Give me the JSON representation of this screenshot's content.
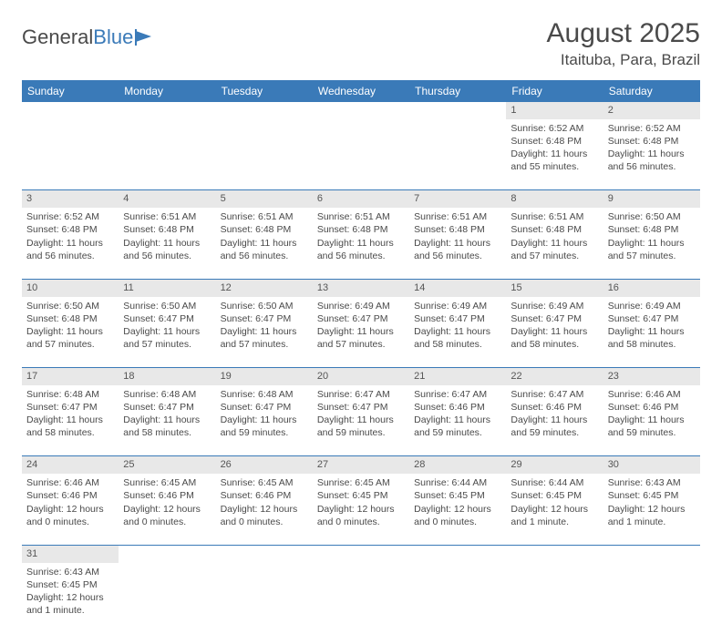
{
  "brand": {
    "part1": "General",
    "part2": "Blue"
  },
  "title": "August 2025",
  "location": "Itaituba, Para, Brazil",
  "colors": {
    "header_bg": "#3a7ab8",
    "header_text": "#ffffff",
    "daynum_bg": "#e8e8e8",
    "text": "#4a4a4a",
    "rule": "#3a7ab8"
  },
  "weekdays": [
    "Sunday",
    "Monday",
    "Tuesday",
    "Wednesday",
    "Thursday",
    "Friday",
    "Saturday"
  ],
  "weeks": [
    [
      null,
      null,
      null,
      null,
      null,
      {
        "n": "1",
        "sr": "Sunrise: 6:52 AM",
        "ss": "Sunset: 6:48 PM",
        "dl1": "Daylight: 11 hours",
        "dl2": "and 55 minutes."
      },
      {
        "n": "2",
        "sr": "Sunrise: 6:52 AM",
        "ss": "Sunset: 6:48 PM",
        "dl1": "Daylight: 11 hours",
        "dl2": "and 56 minutes."
      }
    ],
    [
      {
        "n": "3",
        "sr": "Sunrise: 6:52 AM",
        "ss": "Sunset: 6:48 PM",
        "dl1": "Daylight: 11 hours",
        "dl2": "and 56 minutes."
      },
      {
        "n": "4",
        "sr": "Sunrise: 6:51 AM",
        "ss": "Sunset: 6:48 PM",
        "dl1": "Daylight: 11 hours",
        "dl2": "and 56 minutes."
      },
      {
        "n": "5",
        "sr": "Sunrise: 6:51 AM",
        "ss": "Sunset: 6:48 PM",
        "dl1": "Daylight: 11 hours",
        "dl2": "and 56 minutes."
      },
      {
        "n": "6",
        "sr": "Sunrise: 6:51 AM",
        "ss": "Sunset: 6:48 PM",
        "dl1": "Daylight: 11 hours",
        "dl2": "and 56 minutes."
      },
      {
        "n": "7",
        "sr": "Sunrise: 6:51 AM",
        "ss": "Sunset: 6:48 PM",
        "dl1": "Daylight: 11 hours",
        "dl2": "and 56 minutes."
      },
      {
        "n": "8",
        "sr": "Sunrise: 6:51 AM",
        "ss": "Sunset: 6:48 PM",
        "dl1": "Daylight: 11 hours",
        "dl2": "and 57 minutes."
      },
      {
        "n": "9",
        "sr": "Sunrise: 6:50 AM",
        "ss": "Sunset: 6:48 PM",
        "dl1": "Daylight: 11 hours",
        "dl2": "and 57 minutes."
      }
    ],
    [
      {
        "n": "10",
        "sr": "Sunrise: 6:50 AM",
        "ss": "Sunset: 6:48 PM",
        "dl1": "Daylight: 11 hours",
        "dl2": "and 57 minutes."
      },
      {
        "n": "11",
        "sr": "Sunrise: 6:50 AM",
        "ss": "Sunset: 6:47 PM",
        "dl1": "Daylight: 11 hours",
        "dl2": "and 57 minutes."
      },
      {
        "n": "12",
        "sr": "Sunrise: 6:50 AM",
        "ss": "Sunset: 6:47 PM",
        "dl1": "Daylight: 11 hours",
        "dl2": "and 57 minutes."
      },
      {
        "n": "13",
        "sr": "Sunrise: 6:49 AM",
        "ss": "Sunset: 6:47 PM",
        "dl1": "Daylight: 11 hours",
        "dl2": "and 57 minutes."
      },
      {
        "n": "14",
        "sr": "Sunrise: 6:49 AM",
        "ss": "Sunset: 6:47 PM",
        "dl1": "Daylight: 11 hours",
        "dl2": "and 58 minutes."
      },
      {
        "n": "15",
        "sr": "Sunrise: 6:49 AM",
        "ss": "Sunset: 6:47 PM",
        "dl1": "Daylight: 11 hours",
        "dl2": "and 58 minutes."
      },
      {
        "n": "16",
        "sr": "Sunrise: 6:49 AM",
        "ss": "Sunset: 6:47 PM",
        "dl1": "Daylight: 11 hours",
        "dl2": "and 58 minutes."
      }
    ],
    [
      {
        "n": "17",
        "sr": "Sunrise: 6:48 AM",
        "ss": "Sunset: 6:47 PM",
        "dl1": "Daylight: 11 hours",
        "dl2": "and 58 minutes."
      },
      {
        "n": "18",
        "sr": "Sunrise: 6:48 AM",
        "ss": "Sunset: 6:47 PM",
        "dl1": "Daylight: 11 hours",
        "dl2": "and 58 minutes."
      },
      {
        "n": "19",
        "sr": "Sunrise: 6:48 AM",
        "ss": "Sunset: 6:47 PM",
        "dl1": "Daylight: 11 hours",
        "dl2": "and 59 minutes."
      },
      {
        "n": "20",
        "sr": "Sunrise: 6:47 AM",
        "ss": "Sunset: 6:47 PM",
        "dl1": "Daylight: 11 hours",
        "dl2": "and 59 minutes."
      },
      {
        "n": "21",
        "sr": "Sunrise: 6:47 AM",
        "ss": "Sunset: 6:46 PM",
        "dl1": "Daylight: 11 hours",
        "dl2": "and 59 minutes."
      },
      {
        "n": "22",
        "sr": "Sunrise: 6:47 AM",
        "ss": "Sunset: 6:46 PM",
        "dl1": "Daylight: 11 hours",
        "dl2": "and 59 minutes."
      },
      {
        "n": "23",
        "sr": "Sunrise: 6:46 AM",
        "ss": "Sunset: 6:46 PM",
        "dl1": "Daylight: 11 hours",
        "dl2": "and 59 minutes."
      }
    ],
    [
      {
        "n": "24",
        "sr": "Sunrise: 6:46 AM",
        "ss": "Sunset: 6:46 PM",
        "dl1": "Daylight: 12 hours",
        "dl2": "and 0 minutes."
      },
      {
        "n": "25",
        "sr": "Sunrise: 6:45 AM",
        "ss": "Sunset: 6:46 PM",
        "dl1": "Daylight: 12 hours",
        "dl2": "and 0 minutes."
      },
      {
        "n": "26",
        "sr": "Sunrise: 6:45 AM",
        "ss": "Sunset: 6:46 PM",
        "dl1": "Daylight: 12 hours",
        "dl2": "and 0 minutes."
      },
      {
        "n": "27",
        "sr": "Sunrise: 6:45 AM",
        "ss": "Sunset: 6:45 PM",
        "dl1": "Daylight: 12 hours",
        "dl2": "and 0 minutes."
      },
      {
        "n": "28",
        "sr": "Sunrise: 6:44 AM",
        "ss": "Sunset: 6:45 PM",
        "dl1": "Daylight: 12 hours",
        "dl2": "and 0 minutes."
      },
      {
        "n": "29",
        "sr": "Sunrise: 6:44 AM",
        "ss": "Sunset: 6:45 PM",
        "dl1": "Daylight: 12 hours",
        "dl2": "and 1 minute."
      },
      {
        "n": "30",
        "sr": "Sunrise: 6:43 AM",
        "ss": "Sunset: 6:45 PM",
        "dl1": "Daylight: 12 hours",
        "dl2": "and 1 minute."
      }
    ],
    [
      {
        "n": "31",
        "sr": "Sunrise: 6:43 AM",
        "ss": "Sunset: 6:45 PM",
        "dl1": "Daylight: 12 hours",
        "dl2": "and 1 minute."
      },
      null,
      null,
      null,
      null,
      null,
      null
    ]
  ]
}
